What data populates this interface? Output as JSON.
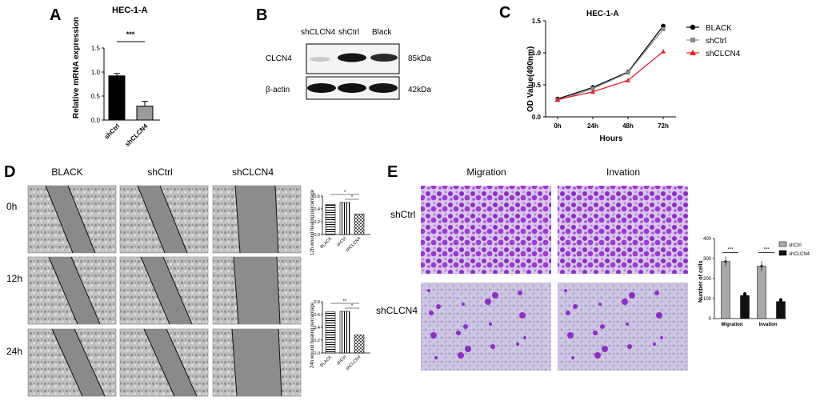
{
  "panelA": {
    "letter": "A",
    "title": "HEC-1-A",
    "ylabel": "Relative mRNA expression",
    "sig": "***",
    "ticks": [
      "0.0",
      "0.5",
      "1.0",
      "1.5"
    ]
  },
  "panelB": {
    "letter": "B",
    "lanes": [
      "shCLCN4",
      "shCtrl",
      "Black"
    ],
    "rows": [
      {
        "name": "CLCN4",
        "kda": "85kDa"
      },
      {
        "name": "β-actin",
        "kda": "42kDa"
      }
    ]
  },
  "panelC": {
    "letter": "C",
    "title": "HEC-1-A",
    "ylabel": "OD Value(490nm)",
    "xlabel": "Hours",
    "legend": [
      "BLACK",
      "shCtrl",
      "shCLCN4"
    ],
    "xticks": [
      "0h",
      "24h",
      "48h",
      "72h"
    ],
    "yticks": [
      "0.0",
      "0.5",
      "1.0",
      "1.5"
    ]
  },
  "panelD": {
    "letter": "D",
    "cols": [
      "BLACK",
      "shCtrl",
      "shCLCN4"
    ],
    "rows": [
      "0h",
      "12h",
      "24h"
    ],
    "bar12": {
      "ylabel": "12h wound healing percentage",
      "ticks": [
        "0.0",
        "0.2",
        "0.4",
        "0.6"
      ],
      "cats": [
        "BLACK",
        "shCtrl",
        "shCLCN4"
      ],
      "sig1": "*",
      "sig2": "*"
    },
    "bar24": {
      "ylabel": "24h wound healing percentage",
      "ticks": [
        "0.0",
        "0.2",
        "0.4",
        "0.6",
        "0.8"
      ],
      "cats": [
        "BLACK",
        "shCtrl",
        "shCLCN4"
      ],
      "sig1": "**",
      "sig2": "*"
    }
  },
  "panelE": {
    "letter": "E",
    "cols": [
      "Migration",
      "Invation"
    ],
    "rows": [
      "shCtrl",
      "shCLCN4"
    ],
    "bar": {
      "ylabel": "Number of cells",
      "ticks": [
        "0",
        "100",
        "200",
        "300",
        "400"
      ],
      "cats": [
        "Migration",
        "Invation"
      ],
      "legend": [
        "shCtrl",
        "shCLCN4"
      ],
      "sig": [
        "***",
        "***"
      ]
    }
  },
  "chart_data": [
    {
      "type": "bar",
      "title": "HEC-1-A",
      "ylabel": "Relative mRNA expression",
      "categories": [
        "shCtrl",
        "shCLCN4"
      ],
      "values": [
        0.92,
        0.29
      ],
      "errors": [
        0.05,
        0.1
      ],
      "ylim": [
        0,
        1.5
      ],
      "colors": [
        "#000000",
        "#9a9a9a"
      ]
    },
    {
      "type": "line",
      "title": "HEC-1-A",
      "xlabel": "Hours",
      "ylabel": "OD Value(490nm)",
      "categories": [
        "0h",
        "24h",
        "48h",
        "72h"
      ],
      "ylim": [
        0,
        1.5
      ],
      "series": [
        {
          "name": "BLACK",
          "color": "#000000",
          "values": [
            0.28,
            0.46,
            0.7,
            1.42
          ]
        },
        {
          "name": "shCtrl",
          "color": "#8c8c8c",
          "values": [
            0.26,
            0.44,
            0.69,
            1.37
          ]
        },
        {
          "name": "shCLCN4",
          "color": "#e8202a",
          "values": [
            0.27,
            0.39,
            0.57,
            1.02
          ]
        }
      ],
      "legend": "right"
    },
    {
      "type": "bar",
      "ylabel": "12h wound healing percentage",
      "categories": [
        "BLACK",
        "shCtrl",
        "shCLCN4"
      ],
      "values": [
        0.47,
        0.5,
        0.32
      ],
      "ylim": [
        0,
        0.6
      ]
    },
    {
      "type": "bar",
      "ylabel": "24h wound healing percentage",
      "categories": [
        "BLACK",
        "shCtrl",
        "shCLCN4"
      ],
      "values": [
        0.64,
        0.65,
        0.28
      ],
      "ylim": [
        0,
        0.8
      ]
    },
    {
      "type": "bar",
      "ylabel": "Number of cells",
      "categories": [
        "Migration",
        "Invation"
      ],
      "series": [
        {
          "name": "shCtrl",
          "values": [
            285,
            262
          ]
        },
        {
          "name": "shCLCN4",
          "values": [
            115,
            85
          ]
        }
      ],
      "ylim": [
        0,
        400
      ],
      "legend": "top-right"
    }
  ]
}
